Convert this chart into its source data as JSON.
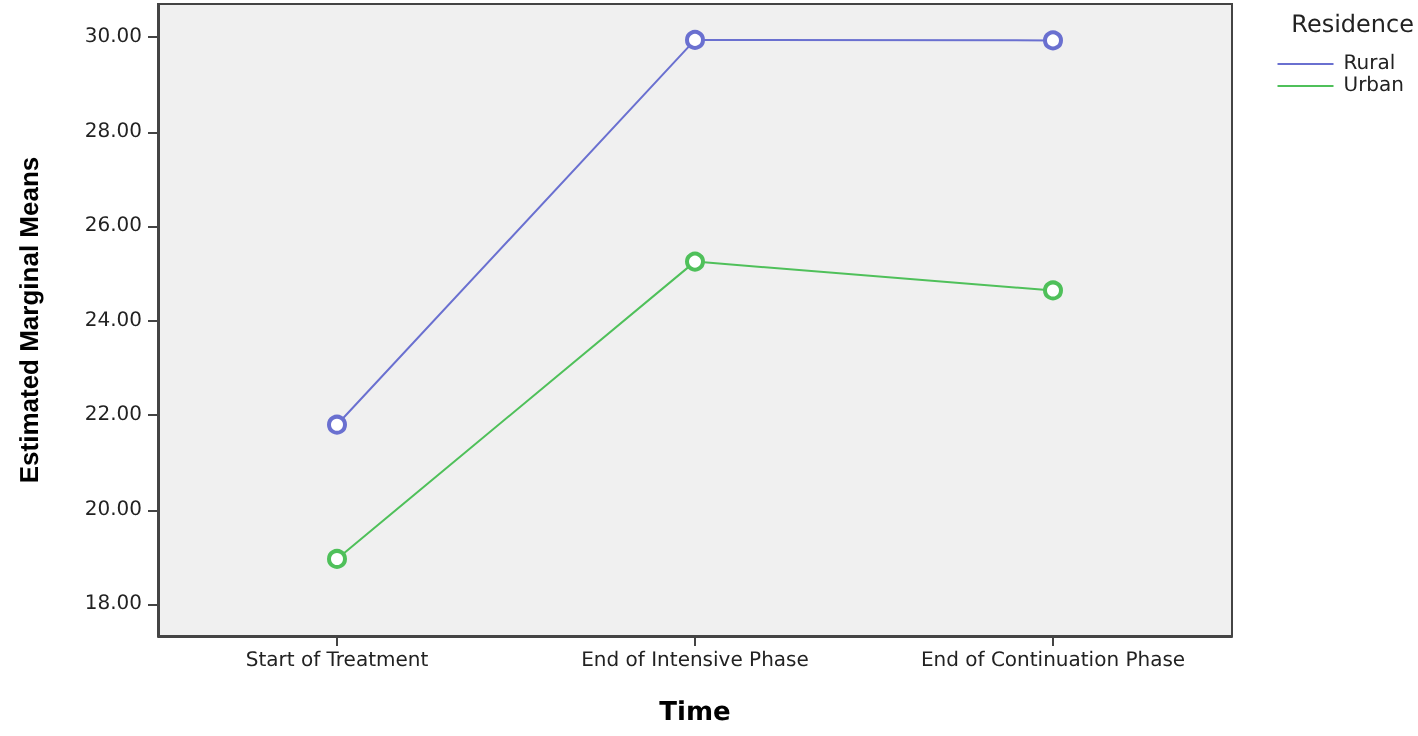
{
  "chart_data": {
    "type": "line",
    "xlabel": "Time",
    "ylabel": "Estimated Marginal Means",
    "legend_title": "Residence",
    "categories": [
      "Start of Treatment",
      "End of Intensive Phase",
      "End of Continuation Phase"
    ],
    "series": [
      {
        "name": "Rural",
        "color": "#6a70d0",
        "values": [
          21.8,
          29.94,
          29.93
        ]
      },
      {
        "name": "Urban",
        "color": "#4fc05a",
        "values": [
          18.96,
          25.25,
          24.64
        ]
      }
    ],
    "ylim": [
      17.33,
      30.7
    ],
    "yticks": [
      {
        "value": 18,
        "label": "18.00"
      },
      {
        "value": 20,
        "label": "20.00"
      },
      {
        "value": 22,
        "label": "22.00"
      },
      {
        "value": 24,
        "label": "24.00"
      },
      {
        "value": 26,
        "label": "26.00"
      },
      {
        "value": 28,
        "label": "28.00"
      },
      {
        "value": 30,
        "label": "30.00"
      }
    ],
    "grid": false,
    "legend": "top right",
    "marker": "circle",
    "line_style": "solid"
  }
}
